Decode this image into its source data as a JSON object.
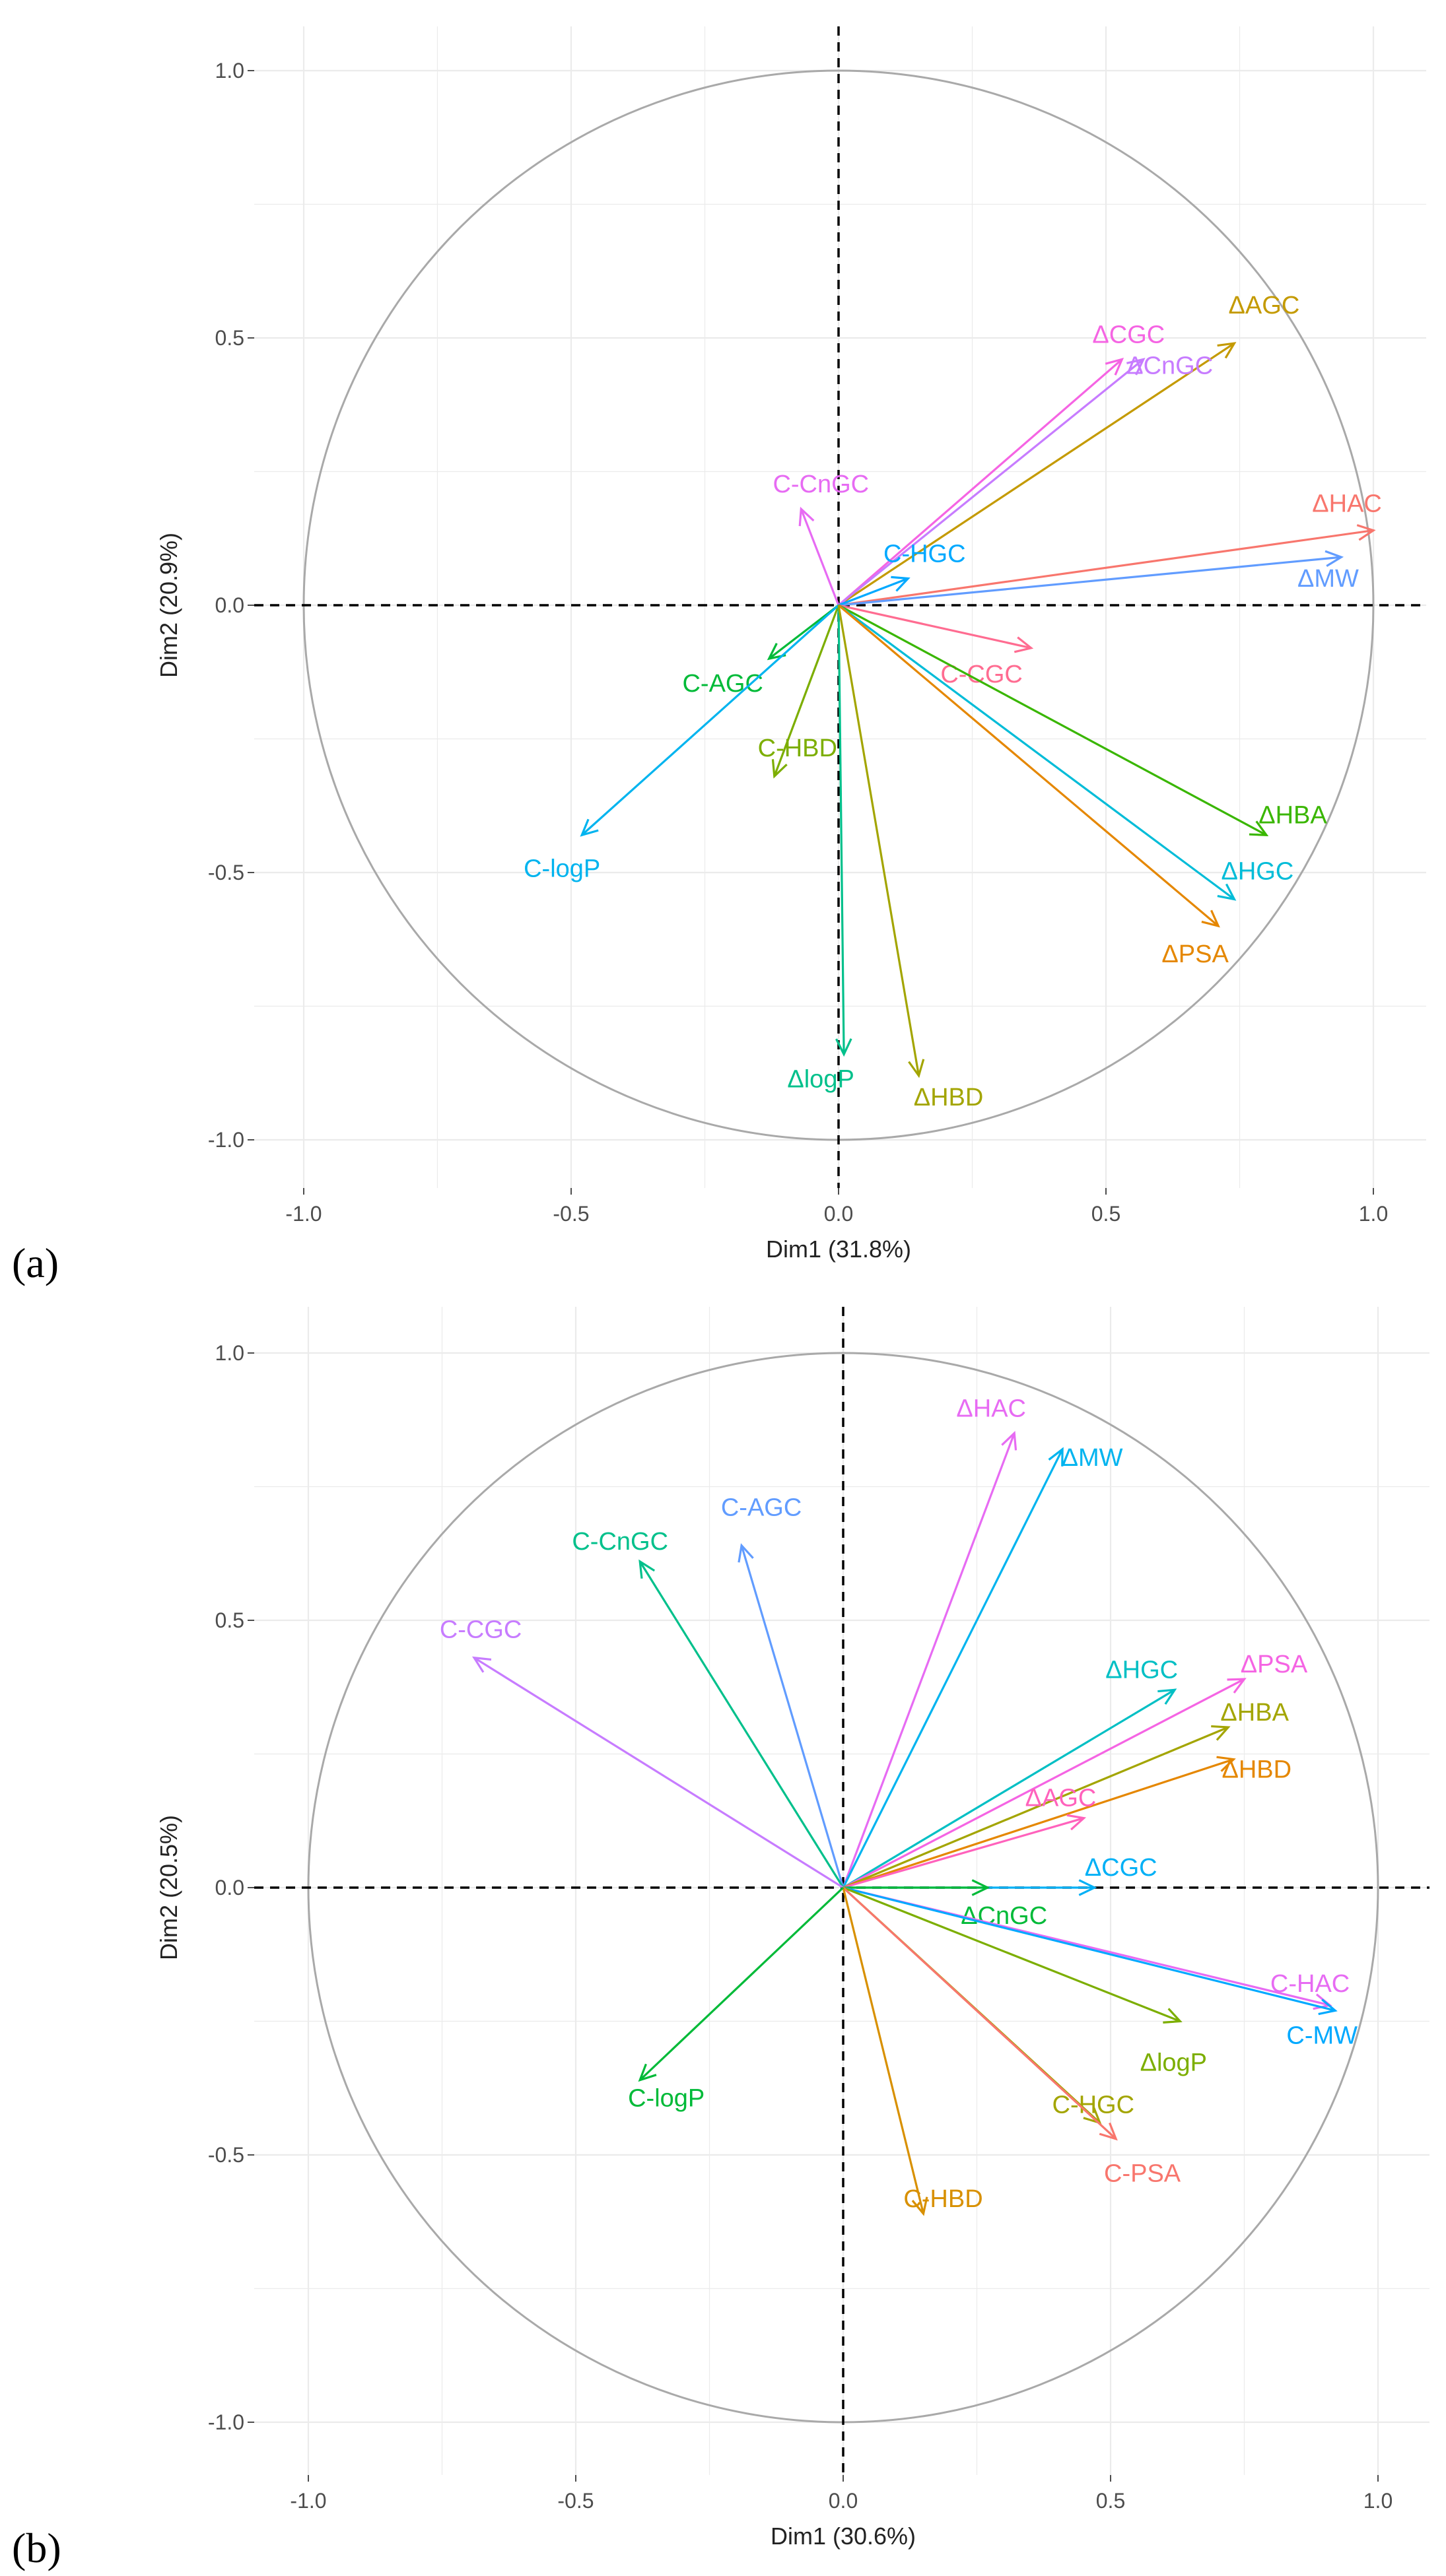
{
  "chart_data": [
    {
      "type": "scatter",
      "subtype": "pca-variable-correlation-circle",
      "panel_label": "(a)",
      "xlabel": "Dim1 (31.8%)",
      "ylabel": "Dim2 (20.9%)",
      "xlim": [
        -1.0,
        1.0
      ],
      "ylim": [
        -1.0,
        1.0
      ],
      "xticks": [
        "-1.0",
        "-0.5",
        "0.0",
        "0.5",
        "1.0"
      ],
      "yticks": [
        "-1.0",
        "-0.5",
        "0.0",
        "0.5",
        "1.0"
      ],
      "grid": true,
      "variables": [
        {
          "name": "ΔAGC",
          "x": 0.74,
          "y": 0.49,
          "color": "#C49A00"
        },
        {
          "name": "ΔCGC",
          "x": 0.53,
          "y": 0.46,
          "color": "#F564E3"
        },
        {
          "name": "ΔCnGC",
          "x": 0.57,
          "y": 0.46,
          "color": "#C77CFF"
        },
        {
          "name": "ΔHAC",
          "x": 1.0,
          "y": 0.14,
          "color": "#F8766D"
        },
        {
          "name": "ΔMW",
          "x": 0.94,
          "y": 0.09,
          "color": "#619CFF"
        },
        {
          "name": "C-CnGC",
          "x": -0.07,
          "y": 0.18,
          "color": "#E76BF3"
        },
        {
          "name": "C-HGC",
          "x": 0.13,
          "y": 0.05,
          "color": "#00A9FF"
        },
        {
          "name": "C-CGC",
          "x": 0.36,
          "y": -0.08,
          "color": "#FF6C91"
        },
        {
          "name": "C-AGC",
          "x": -0.13,
          "y": -0.1,
          "color": "#00BA38"
        },
        {
          "name": "C-HBD",
          "x": -0.12,
          "y": -0.32,
          "color": "#7CAE00"
        },
        {
          "name": "C-logP",
          "x": -0.48,
          "y": -0.43,
          "color": "#00B4EF"
        },
        {
          "name": "ΔHBA",
          "x": 0.8,
          "y": -0.43,
          "color": "#39B600"
        },
        {
          "name": "ΔHGC",
          "x": 0.74,
          "y": -0.55,
          "color": "#00BCD8"
        },
        {
          "name": "ΔPSA",
          "x": 0.71,
          "y": -0.6,
          "color": "#E58700"
        },
        {
          "name": "ΔlogP",
          "x": 0.01,
          "y": -0.84,
          "color": "#00C08B"
        },
        {
          "name": "ΔHBD",
          "x": 0.15,
          "y": -0.88,
          "color": "#A3A500"
        }
      ]
    },
    {
      "type": "scatter",
      "subtype": "pca-variable-correlation-circle",
      "panel_label": "(b)",
      "xlabel": "Dim1 (30.6%)",
      "ylabel": "Dim2 (20.5%)",
      "xlim": [
        -1.0,
        1.0
      ],
      "ylim": [
        -1.0,
        1.0
      ],
      "xticks": [
        "-1.0",
        "-0.5",
        "0.0",
        "0.5",
        "1.0"
      ],
      "yticks": [
        "-1.0",
        "-0.5",
        "0.0",
        "0.5",
        "1.0"
      ],
      "grid": true,
      "variables": [
        {
          "name": "ΔHAC",
          "x": 0.32,
          "y": 0.85,
          "color": "#E76BF3"
        },
        {
          "name": "ΔMW",
          "x": 0.41,
          "y": 0.82,
          "color": "#00B4EF"
        },
        {
          "name": "C-AGC",
          "x": -0.19,
          "y": 0.64,
          "color": "#619CFF"
        },
        {
          "name": "C-CnGC",
          "x": -0.38,
          "y": 0.61,
          "color": "#00C08B"
        },
        {
          "name": "C-CGC",
          "x": -0.69,
          "y": 0.43,
          "color": "#C77CFF"
        },
        {
          "name": "ΔHGC",
          "x": 0.62,
          "y": 0.37,
          "color": "#00BFC4"
        },
        {
          "name": "ΔPSA",
          "x": 0.75,
          "y": 0.39,
          "color": "#F564E3"
        },
        {
          "name": "ΔHBA",
          "x": 0.72,
          "y": 0.3,
          "color": "#A3A500"
        },
        {
          "name": "ΔHBD",
          "x": 0.73,
          "y": 0.24,
          "color": "#E58700"
        },
        {
          "name": "ΔAGC",
          "x": 0.45,
          "y": 0.13,
          "color": "#FF62BC"
        },
        {
          "name": "ΔCGC",
          "x": 0.47,
          "y": 0.0,
          "color": "#00B0F6"
        },
        {
          "name": "ΔCnGC",
          "x": 0.27,
          "y": 0.0,
          "color": "#00BA38"
        },
        {
          "name": "C-HAC",
          "x": 0.91,
          "y": -0.22,
          "color": "#E76BF3"
        },
        {
          "name": "C-MW",
          "x": 0.92,
          "y": -0.23,
          "color": "#00A9FF"
        },
        {
          "name": "ΔlogP",
          "x": 0.63,
          "y": -0.25,
          "color": "#7CAE00"
        },
        {
          "name": "C-HGC",
          "x": 0.48,
          "y": -0.44,
          "color": "#A3A500"
        },
        {
          "name": "C-PSA",
          "x": 0.51,
          "y": -0.47,
          "color": "#F8766D"
        },
        {
          "name": "C-HBD",
          "x": 0.15,
          "y": -0.61,
          "color": "#D89000"
        },
        {
          "name": "C-logP",
          "x": -0.38,
          "y": -0.36,
          "color": "#00BA38"
        }
      ]
    }
  ]
}
